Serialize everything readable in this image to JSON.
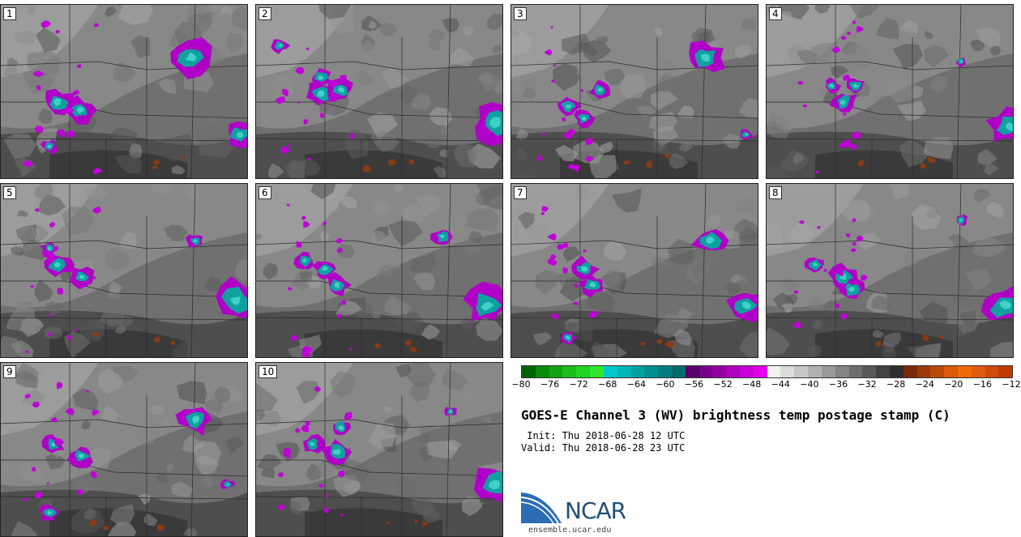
{
  "stamps": [
    {
      "label": "1"
    },
    {
      "label": "2"
    },
    {
      "label": "3"
    },
    {
      "label": "4"
    },
    {
      "label": "5"
    },
    {
      "label": "6"
    },
    {
      "label": "7"
    },
    {
      "label": "8"
    },
    {
      "label": "9"
    },
    {
      "label": "10"
    }
  ],
  "colorbar": {
    "colors": [
      "#006400",
      "#0a8a0a",
      "#12a312",
      "#1bbd1b",
      "#22d422",
      "#2ee62e",
      "#00c8c8",
      "#00b5b5",
      "#00a2a2",
      "#009090",
      "#007e7e",
      "#006b6b",
      "#5a006b",
      "#760086",
      "#9200a2",
      "#ae00bd",
      "#c800d6",
      "#e000ee",
      "#f2f2f2",
      "#dcdcdc",
      "#c6c6c6",
      "#b0b0b0",
      "#9a9a9a",
      "#848484",
      "#6e6e6e",
      "#585858",
      "#424242",
      "#2e2e2e",
      "#7a2a0a",
      "#9a3a0a",
      "#ba4a0a",
      "#da5a0a",
      "#f06a0a",
      "#e05a12",
      "#d04a0a",
      "#c03a02"
    ],
    "ticks": [
      "−80",
      "−76",
      "−72",
      "−68",
      "−64",
      "−60",
      "−56",
      "−52",
      "−48",
      "−44",
      "−40",
      "−36",
      "−32",
      "−28",
      "−24",
      "−20",
      "−16",
      "−12"
    ]
  },
  "title": "GOES-E Channel 3 (WV) brightness temp postage stamp (C)",
  "init": " Init: Thu 2018-06-28 12 UTC",
  "valid": "Valid: Thu 2018-06-28 23 UTC",
  "logo": {
    "text": "NCAR",
    "url": "ensemble.ucar.edu"
  }
}
